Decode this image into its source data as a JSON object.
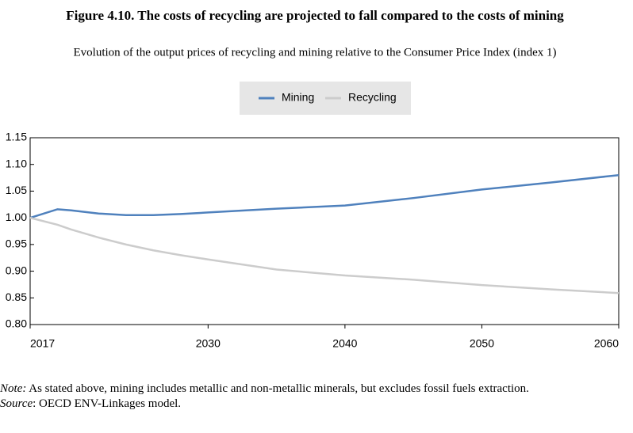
{
  "chart_data": {
    "type": "line",
    "title": "Figure 4.10. The costs of recycling are projected to fall compared to the costs of mining",
    "subtitle": "Evolution of the output prices of recycling and mining relative to the Consumer Price Index (index 1)",
    "x": [
      2017,
      2019,
      2020,
      2022,
      2024,
      2026,
      2028,
      2030,
      2035,
      2040,
      2045,
      2050,
      2055,
      2060
    ],
    "series": [
      {
        "name": "Mining",
        "color": "#4f81bd",
        "values": [
          1.0,
          1.016,
          1.014,
          1.008,
          1.005,
          1.005,
          1.007,
          1.01,
          1.017,
          1.023,
          1.037,
          1.053,
          1.066,
          1.08
        ]
      },
      {
        "name": "Recycling",
        "color": "#cccccc",
        "values": [
          1.0,
          0.987,
          0.978,
          0.963,
          0.95,
          0.939,
          0.93,
          0.922,
          0.903,
          0.892,
          0.884,
          0.874,
          0.866,
          0.859
        ]
      }
    ],
    "xlim": [
      2017,
      2060
    ],
    "xticks": [
      2017,
      2030,
      2040,
      2050,
      2060
    ],
    "ylim": [
      0.8,
      1.15
    ],
    "yticks": [
      {
        "value": 0.8,
        "label": "0.80"
      },
      0.85,
      {
        "value": 0.9,
        "label": "0.90"
      },
      0.95,
      {
        "value": 1.0,
        "label": "1.00"
      },
      1.05,
      {
        "value": 1.1,
        "label": "1.10"
      },
      1.15
    ],
    "legend": "top",
    "grid": false
  },
  "notes": {
    "note_label": "Note:",
    "note_text": " As stated above, mining includes metallic and non-metallic minerals, but excludes fossil fuels extraction.",
    "source_label": "Source",
    "source_text": ": OECD ENV-Linkages model."
  }
}
